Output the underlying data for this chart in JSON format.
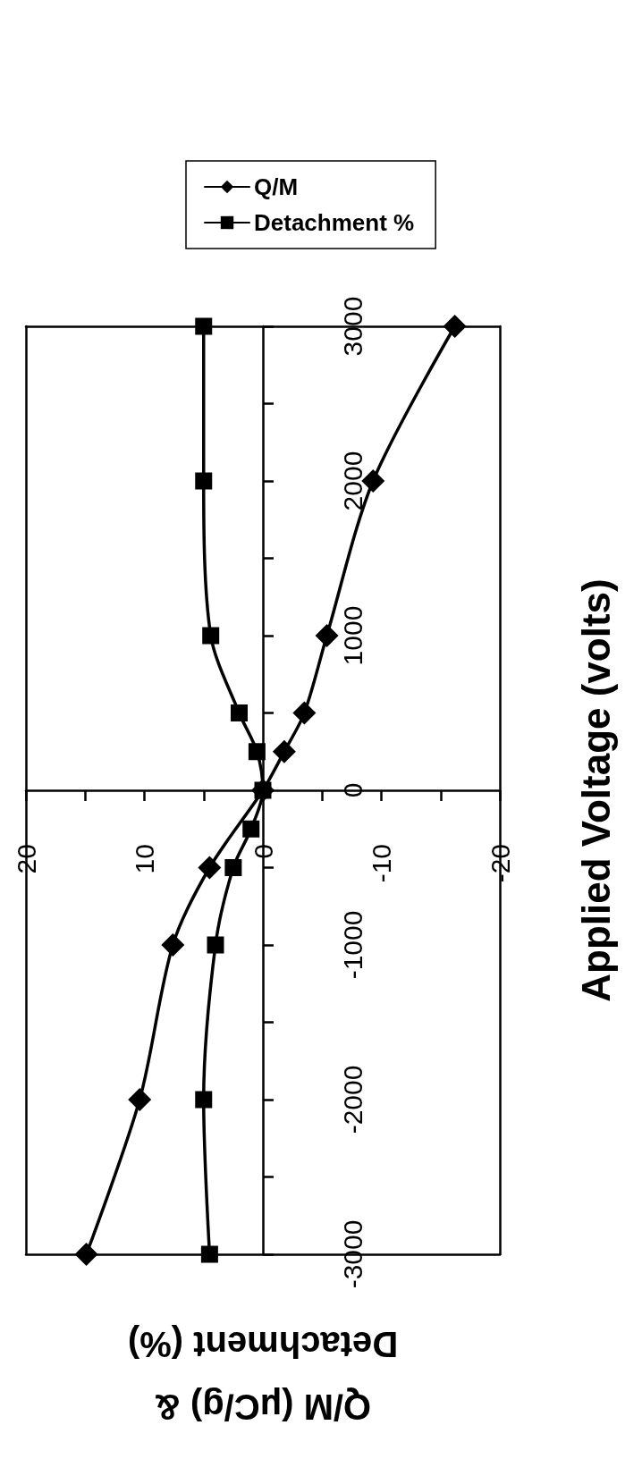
{
  "chart_data": {
    "type": "line",
    "xlabel": "Q/M (μC/g) &\nDetachment (%)",
    "ylabel": "Applied Voltage (volts)",
    "series": [
      {
        "name": "Q/M",
        "color": "#000000",
        "marker": "diamond",
        "x": [
          14.9,
          10.4,
          7.6,
          4.5,
          null,
          0,
          -1.8,
          -3.5,
          -5.4,
          -9.3,
          -16.2
        ],
        "values": [
          -3000,
          -2000,
          -1000,
          -500,
          null,
          0,
          250,
          500,
          1000,
          2000,
          3000
        ]
      },
      {
        "name": "Detachment %",
        "color": "#000000",
        "marker": "square",
        "x": [
          4.5,
          5,
          4,
          2.5,
          1,
          0,
          0.5,
          2,
          4.4,
          5,
          5
        ],
        "values": [
          -3000,
          -2000,
          -1000,
          -500,
          -250,
          0,
          250,
          500,
          1000,
          2000,
          3000
        ]
      }
    ],
    "xlim": [
      20,
      -20
    ],
    "xticks": [
      20,
      {
        "value": 15,
        "label": null
      },
      10,
      {
        "value": 5,
        "label": null
      },
      0,
      {
        "value": -5,
        "label": null
      },
      -10,
      {
        "value": -15,
        "label": null
      },
      -20
    ],
    "ylim": [
      -3000,
      3000
    ],
    "yticks": [
      -3000,
      {
        "value": -2500,
        "label": null
      },
      -2000,
      {
        "value": -1500,
        "label": null
      },
      -1000,
      {
        "value": -500,
        "label": null
      },
      0,
      {
        "value": 500,
        "label": null
      },
      1000,
      {
        "value": 1500,
        "label": null
      },
      2000,
      {
        "value": 2500,
        "label": null
      },
      3000
    ],
    "legend": "top",
    "line_style": "solid"
  }
}
